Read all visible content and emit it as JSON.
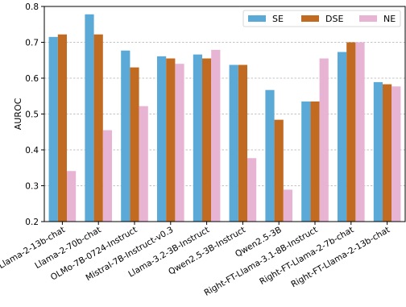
{
  "chart_data": {
    "type": "bar",
    "xlabel": "",
    "ylabel": "AUROC",
    "ylim": [
      0.2,
      0.8
    ],
    "yticks": [
      "0.2",
      "0.3",
      "0.4",
      "0.5",
      "0.6",
      "0.7",
      "0.8"
    ],
    "grid": "horizontal-dashed",
    "legend_position": "top-right",
    "categories": [
      "Llama-2-13b-chat",
      "Llama-2-70b-chat",
      "OLMo-7B-0724-Instruct",
      "Mistral-7B-Instruct-v0.3",
      "Llama-3.2-3B-Instruct",
      "Qwen2.5-3B-Instruct",
      "Qwen2.5-3B",
      "Right-FT-Llama-3.1-8B-Instruct",
      "Right-FT-Llama-2-7b-chat",
      "Right-FT-Llama-2-13b-chat"
    ],
    "series": [
      {
        "name": "SE",
        "color": "#5aa9d6",
        "values": [
          0.715,
          0.778,
          0.677,
          0.661,
          0.666,
          0.637,
          0.567,
          0.535,
          0.673,
          0.589
        ]
      },
      {
        "name": "DSE",
        "color": "#c06a22",
        "values": [
          0.722,
          0.722,
          0.63,
          0.655,
          0.655,
          0.637,
          0.484,
          0.535,
          0.7,
          0.583
        ]
      },
      {
        "name": "NE",
        "color": "#e8b4d4",
        "values": [
          0.341,
          0.455,
          0.522,
          0.64,
          0.679,
          0.377,
          0.289,
          0.655,
          0.7,
          0.577
        ]
      }
    ]
  }
}
